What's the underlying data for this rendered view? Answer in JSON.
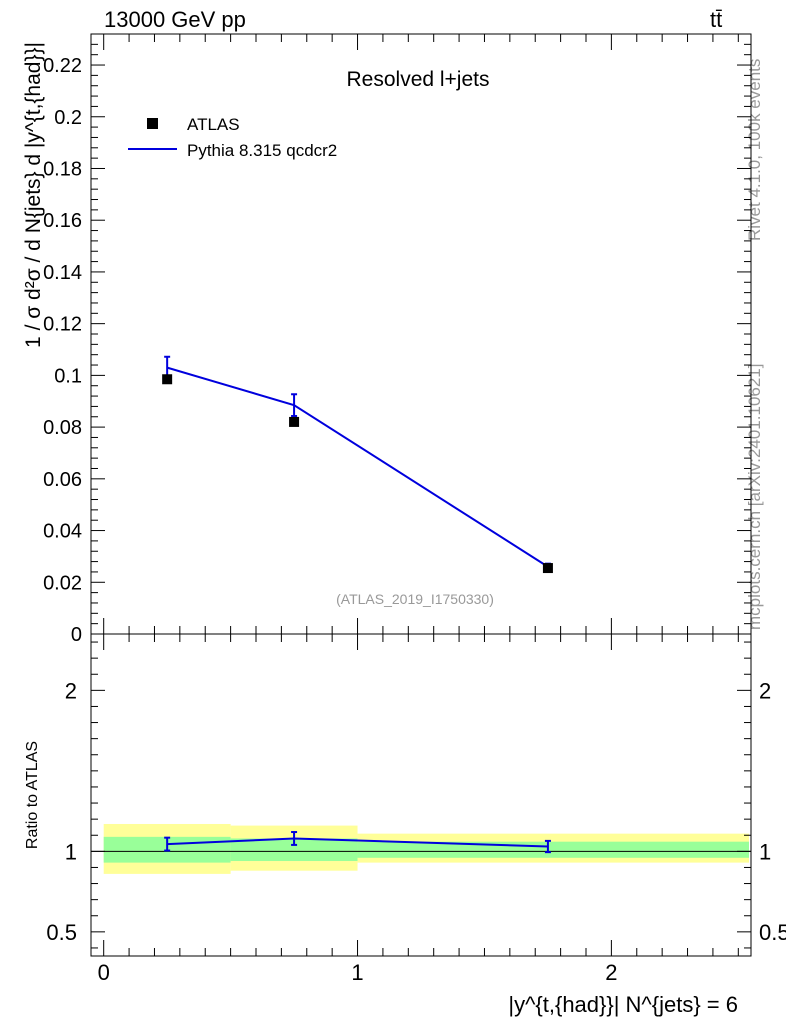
{
  "header": {
    "energy": "13000 GeV pp",
    "process": "tt̄"
  },
  "side_labels": {
    "rivet": "Rivet 4.1.0,  100k events",
    "source": "mcplots.cern.ch [arXiv:2401.10621]"
  },
  "chart_data": [
    {
      "type": "line",
      "title": "Resolved l+jets",
      "watermark": "(ATLAS_2019_I1750330)",
      "ylabel": "1 / σ d²σ / d N{jets} d |y^{t,{had}}|",
      "ylim": [
        0,
        0.232
      ],
      "yticks": [
        0,
        0.02,
        0.04,
        0.06,
        0.08,
        0.1,
        0.12,
        0.14,
        0.16,
        0.18,
        0.2,
        0.22
      ],
      "ytick_labels": [
        "0",
        "0.02",
        "0.04",
        "0.06",
        "0.08",
        "0.1",
        "0.12",
        "0.14",
        "0.16",
        "0.18",
        "0.2",
        "0.22"
      ],
      "xlim": [
        -0.05,
        2.55
      ],
      "legend": {
        "placement": "top-left",
        "entries": [
          {
            "label": "ATLAS",
            "marker": "square",
            "color": "#000000"
          },
          {
            "label": "Pythia 8.315 qcdcr2",
            "marker": "line",
            "color": "#0000dd"
          }
        ]
      },
      "series": [
        {
          "name": "ATLAS",
          "x": [
            0.25,
            0.75,
            1.75
          ],
          "y": [
            0.0985,
            0.082,
            0.0255
          ],
          "color": "#000000"
        },
        {
          "name": "Pythia 8.315 qcdcr2",
          "x": [
            0.25,
            0.75,
            1.75
          ],
          "y": [
            0.103,
            0.0885,
            0.026
          ],
          "err": [
            0.0042,
            0.0042,
            0.0012
          ],
          "color": "#0000dd"
        }
      ]
    },
    {
      "type": "line",
      "ylabel": "Ratio to ATLAS",
      "ylim": [
        0.35,
        2.35
      ],
      "yticks": [
        0.5,
        1,
        2
      ],
      "ytick_labels": [
        "0.5",
        "1",
        "2"
      ],
      "xlim": [
        -0.05,
        2.55
      ],
      "xticks": [
        0,
        1,
        2
      ],
      "xtick_labels": [
        "0",
        "1",
        "2"
      ],
      "xlabel": "|y^{t,{had}}| N^{jets} = 6",
      "bands": {
        "bins": [
          [
            0,
            0.5
          ],
          [
            0.5,
            1.0
          ],
          [
            1.0,
            2.55
          ]
        ],
        "yellow": [
          [
            0.86,
            1.17
          ],
          [
            0.88,
            1.16
          ],
          [
            0.93,
            1.11
          ]
        ],
        "green": [
          [
            0.93,
            1.09
          ],
          [
            0.94,
            1.08
          ],
          [
            0.96,
            1.06
          ]
        ],
        "yellow_color": "#ffff99",
        "green_color": "#99ff99"
      },
      "series": [
        {
          "name": "Pythia 8.315 qcdcr2",
          "x": [
            0.25,
            0.75,
            1.75
          ],
          "y": [
            1.045,
            1.08,
            1.03
          ],
          "err": [
            0.04,
            0.04,
            0.035
          ],
          "color": "#0000dd"
        }
      ]
    }
  ]
}
